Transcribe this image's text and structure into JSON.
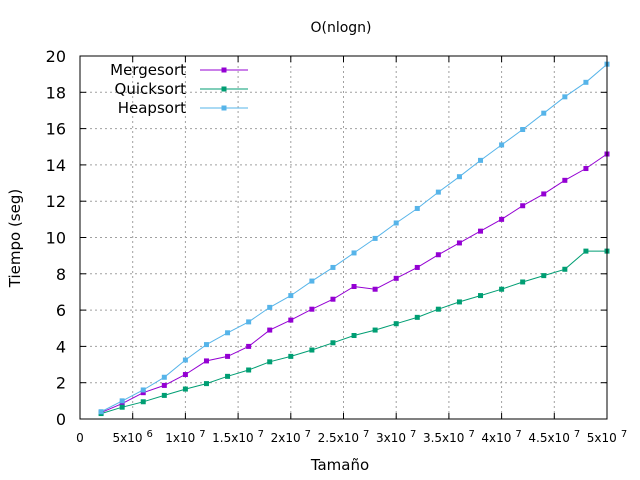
{
  "chart_data": {
    "type": "line",
    "title": "O(nlogn)",
    "xlabel": "Tamaño",
    "ylabel": "Tiempo (seg)",
    "xlim": [
      0,
      50000000
    ],
    "ylim": [
      0,
      20
    ],
    "grid": true,
    "legend_position": "top-left",
    "x_ticks": [
      {
        "value": 0,
        "base": "0",
        "exp": ""
      },
      {
        "value": 5000000,
        "base": "5x10",
        "exp": "6"
      },
      {
        "value": 10000000,
        "base": "1x10",
        "exp": "7"
      },
      {
        "value": 15000000,
        "base": "1.5x10",
        "exp": "7"
      },
      {
        "value": 20000000,
        "base": "2x10",
        "exp": "7"
      },
      {
        "value": 25000000,
        "base": "2.5x10",
        "exp": "7"
      },
      {
        "value": 30000000,
        "base": "3x10",
        "exp": "7"
      },
      {
        "value": 35000000,
        "base": "3.5x10",
        "exp": "7"
      },
      {
        "value": 40000000,
        "base": "4x10",
        "exp": "7"
      },
      {
        "value": 45000000,
        "base": "4.5x10",
        "exp": "7"
      },
      {
        "value": 50000000,
        "base": "5x10",
        "exp": "7"
      }
    ],
    "y_ticks": [
      {
        "value": 0,
        "label": "0"
      },
      {
        "value": 2,
        "label": "2"
      },
      {
        "value": 4,
        "label": "4"
      },
      {
        "value": 6,
        "label": "6"
      },
      {
        "value": 8,
        "label": "8"
      },
      {
        "value": 10,
        "label": "10"
      },
      {
        "value": 12,
        "label": "12"
      },
      {
        "value": 14,
        "label": "14"
      },
      {
        "value": 16,
        "label": "16"
      },
      {
        "value": 18,
        "label": "18"
      },
      {
        "value": 20,
        "label": "20"
      }
    ],
    "x": [
      2000000,
      4000000,
      6000000,
      8000000,
      10000000,
      12000000,
      14000000,
      16000000,
      18000000,
      20000000,
      22000000,
      24000000,
      26000000,
      28000000,
      30000000,
      32000000,
      34000000,
      36000000,
      38000000,
      40000000,
      42000000,
      44000000,
      46000000,
      48000000,
      50000000
    ],
    "series": [
      {
        "name": "Mergesort",
        "color": "#9400d3",
        "marker": "square",
        "values": [
          0.35,
          0.85,
          1.45,
          1.85,
          2.45,
          3.2,
          3.45,
          4.0,
          4.9,
          5.45,
          6.05,
          6.6,
          7.3,
          7.15,
          7.75,
          8.35,
          9.05,
          9.7,
          10.35,
          11.0,
          11.75,
          12.4,
          13.15,
          13.8,
          14.6
        ]
      },
      {
        "name": "Quicksort",
        "color": "#009e73",
        "marker": "square",
        "values": [
          0.3,
          0.65,
          0.95,
          1.3,
          1.65,
          1.95,
          2.35,
          2.7,
          3.15,
          3.45,
          3.8,
          4.2,
          4.6,
          4.9,
          5.25,
          5.6,
          6.05,
          6.45,
          6.8,
          7.15,
          7.55,
          7.9,
          8.25,
          9.25,
          9.25
        ]
      },
      {
        "name": "Heapsort",
        "color": "#56b4e9",
        "marker": "square",
        "values": [
          0.4,
          1.0,
          1.6,
          2.3,
          3.25,
          4.1,
          4.75,
          5.35,
          6.15,
          6.8,
          7.6,
          8.35,
          9.15,
          9.95,
          10.8,
          11.6,
          12.5,
          13.35,
          14.25,
          15.1,
          15.95,
          16.85,
          17.75,
          18.55,
          19.55
        ]
      }
    ]
  }
}
